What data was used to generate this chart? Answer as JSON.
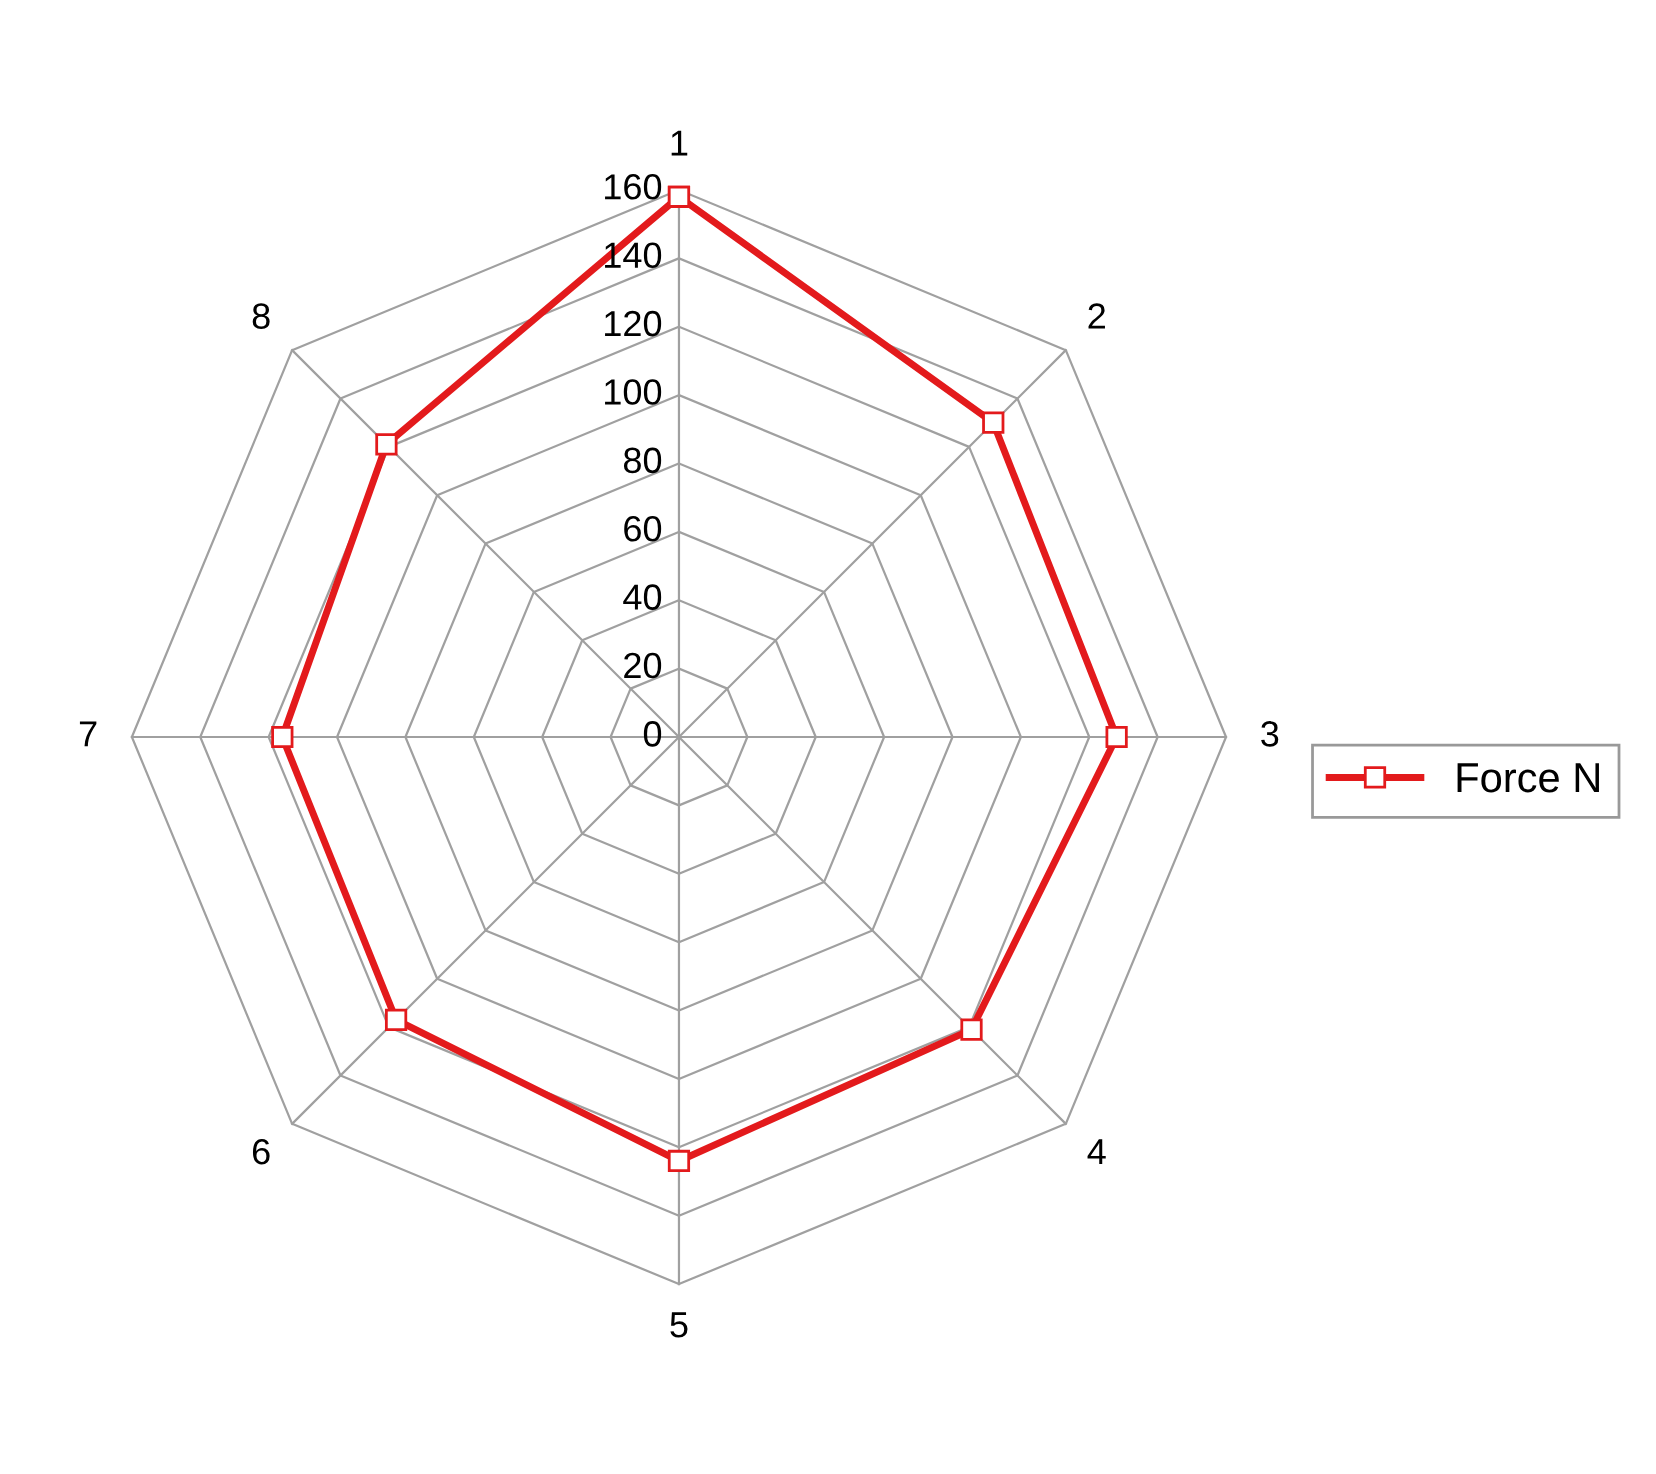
{
  "chart_data": {
    "type": "radar",
    "categories": [
      "1",
      "2",
      "3",
      "4",
      "5",
      "6",
      "7",
      "8"
    ],
    "series": [
      {
        "name": "Force N",
        "color": "#e31a1c",
        "values": [
          158,
          130,
          128,
          121,
          124,
          117,
          116,
          121
        ]
      }
    ],
    "ylim": [
      0,
      160
    ],
    "yticks": [
      0,
      20,
      40,
      60,
      80,
      100,
      120,
      140,
      160
    ],
    "grid": true,
    "legend": "right",
    "marker": "square"
  }
}
